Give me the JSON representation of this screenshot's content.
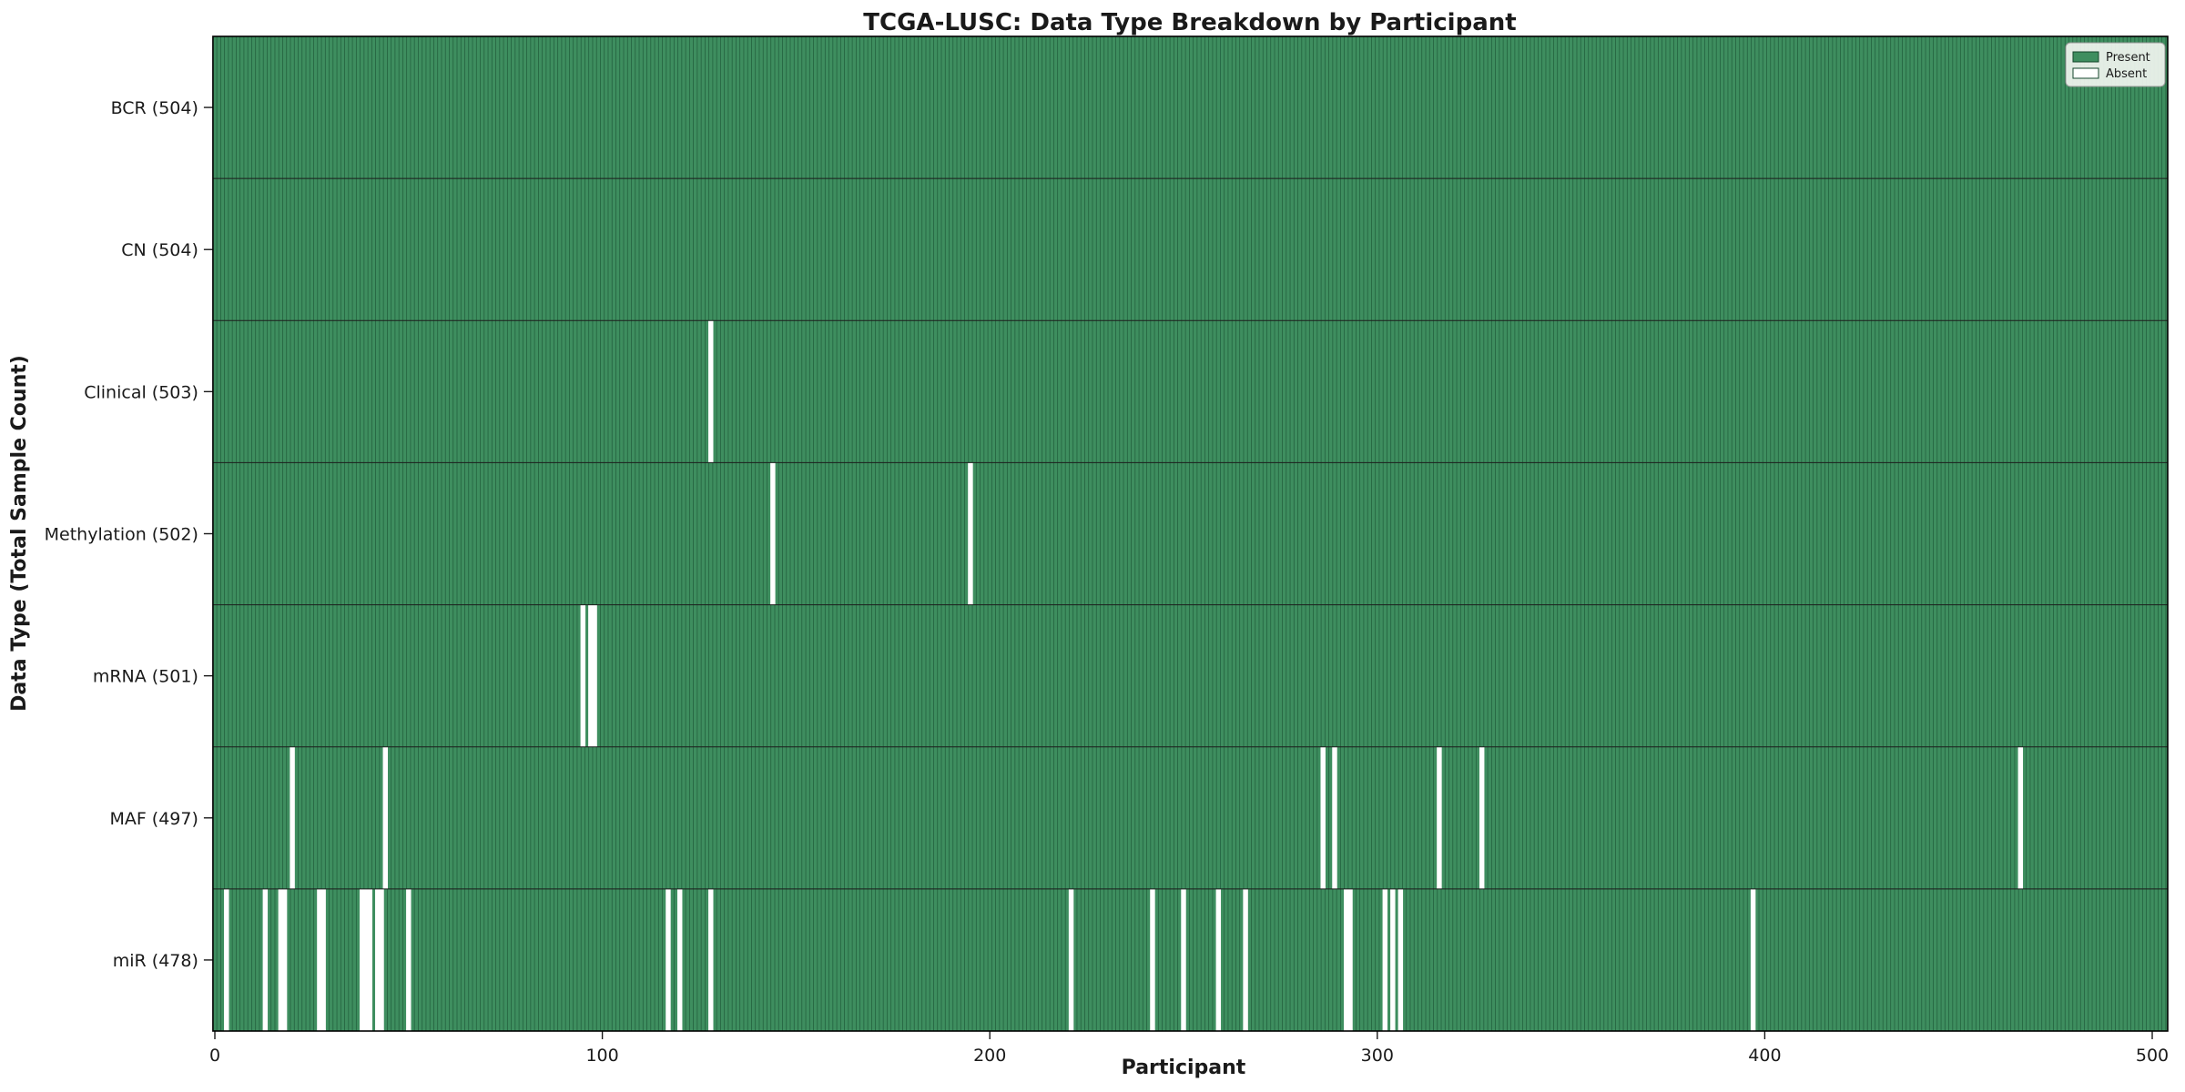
{
  "figure": {
    "title": "TCGA-LUSC: Data Type Breakdown by Participant",
    "xlabel": "Participant",
    "ylabel": "Data Type (Total Sample Count)"
  },
  "legend": {
    "present_label": "Present",
    "absent_label": "Absent"
  },
  "colors": {
    "present": "#3e8e5f",
    "bar_edge": "#14462b",
    "absent": "#ffffff",
    "row_divider": "#1c1c1c",
    "plot_border": "#000000",
    "legend_bg": "#f1f5f0",
    "legend_border": "#9a9a9a",
    "tick_color": "#1a1a1a"
  },
  "chart_data": {
    "type": "heatmap",
    "title": "TCGA-LUSC: Data Type Breakdown by Participant",
    "xlabel": "Participant",
    "ylabel": "Data Type (Total Sample Count)",
    "legend_entries": [
      "Present",
      "Absent"
    ],
    "legend_position": "upper right",
    "n_participants": 504,
    "x_ticks": [
      0,
      100,
      200,
      300,
      400,
      500
    ],
    "xlim": [
      -0.7,
      504
    ],
    "grid": false,
    "cell_states": {
      "present": 1,
      "absent": 0
    },
    "rows": [
      {
        "label": "BCR (504)",
        "data_type": "BCR",
        "total": 504,
        "absent_participants": []
      },
      {
        "label": "CN (504)",
        "data_type": "CN",
        "total": 504,
        "absent_participants": []
      },
      {
        "label": "Clinical (503)",
        "data_type": "Clinical",
        "total": 503,
        "absent_participants": [
          128
        ]
      },
      {
        "label": "Methylation (502)",
        "data_type": "Methylation",
        "total": 502,
        "absent_participants": [
          144,
          195
        ]
      },
      {
        "label": "mRNA (501)",
        "data_type": "mRNA",
        "total": 501,
        "absent_participants": [
          95,
          97,
          98
        ]
      },
      {
        "label": "MAF (497)",
        "data_type": "MAF",
        "total": 497,
        "absent_participants": [
          20,
          44,
          286,
          289,
          316,
          327,
          466
        ]
      },
      {
        "label": "miR (478)",
        "data_type": "miR",
        "total": 478,
        "absent_participants": [
          3,
          13,
          17,
          18,
          27,
          28,
          38,
          39,
          40,
          42,
          43,
          50,
          117,
          120,
          128,
          221,
          242,
          250,
          259,
          266,
          292,
          293,
          302,
          304,
          306,
          397
        ]
      }
    ]
  }
}
